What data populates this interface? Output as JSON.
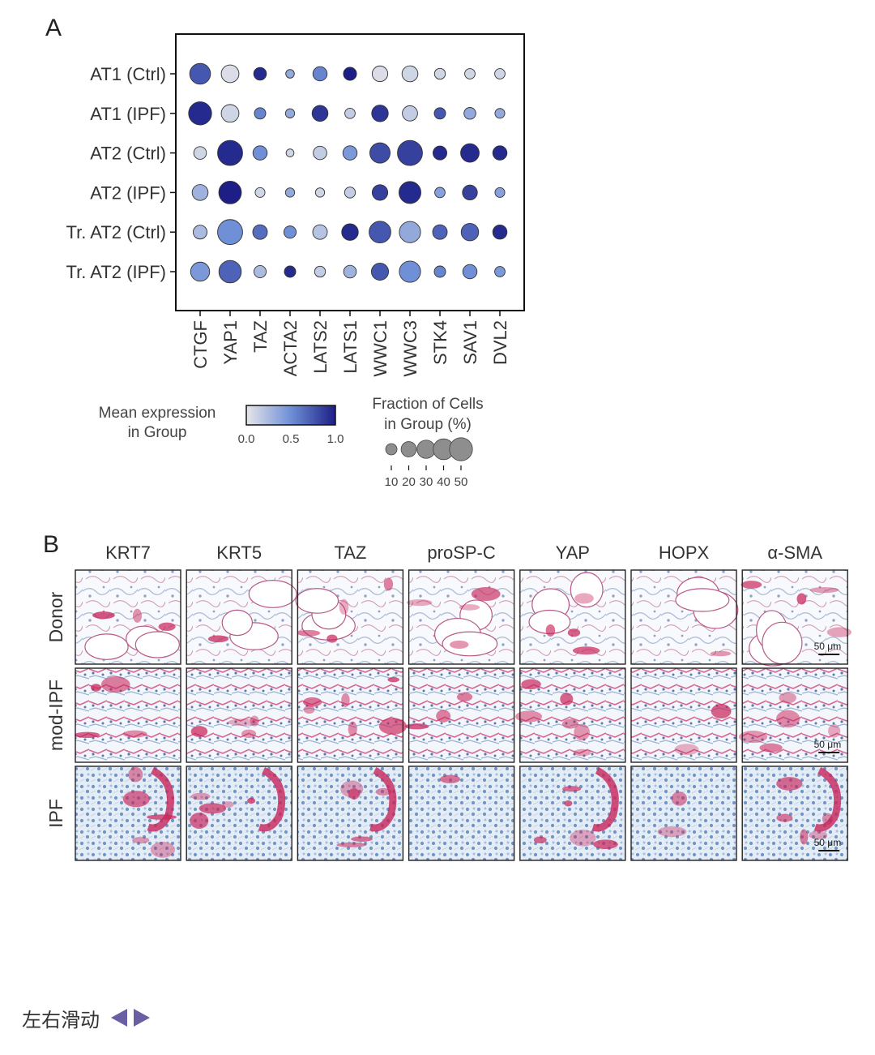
{
  "chart_data": {
    "type": "dotplot",
    "panel_label": "A",
    "rows": [
      "AT1 (Ctrl)",
      "AT1 (IPF)",
      "AT2 (Ctrl)",
      "AT2 (IPF)",
      "Tr. AT2 (Ctrl)",
      "Tr. AT2 (IPF)"
    ],
    "genes": [
      "CTGF",
      "YAP1",
      "TAZ",
      "ACTA2",
      "LATS2",
      "LATS1",
      "WWC1",
      "WWC3",
      "STK4",
      "SAV1",
      "DVL2"
    ],
    "mean_expression": [
      [
        0.75,
        0.05,
        0.95,
        0.35,
        0.55,
        1.0,
        0.05,
        0.1,
        0.1,
        0.1,
        0.1
      ],
      [
        0.95,
        0.1,
        0.55,
        0.35,
        0.9,
        0.15,
        0.9,
        0.15,
        0.75,
        0.35,
        0.35
      ],
      [
        0.1,
        0.95,
        0.5,
        0.1,
        0.15,
        0.45,
        0.8,
        0.85,
        0.95,
        0.95,
        0.95
      ],
      [
        0.3,
        1.0,
        0.1,
        0.35,
        0.1,
        0.15,
        0.85,
        0.95,
        0.4,
        0.85,
        0.4
      ],
      [
        0.25,
        0.5,
        0.65,
        0.5,
        0.2,
        0.95,
        0.75,
        0.35,
        0.7,
        0.7,
        0.95
      ],
      [
        0.45,
        0.7,
        0.25,
        0.95,
        0.15,
        0.3,
        0.75,
        0.5,
        0.55,
        0.5,
        0.45
      ]
    ],
    "fraction_pct": [
      [
        40,
        28,
        13,
        5,
        17,
        14,
        21,
        22,
        9,
        8,
        8
      ],
      [
        50,
        28,
        10,
        6,
        22,
        8,
        24,
        20,
        10,
        11,
        7
      ],
      [
        13,
        60,
        17,
        4,
        15,
        17,
        38,
        60,
        16,
        31,
        17
      ],
      [
        22,
        48,
        7,
        6,
        6,
        9,
        21,
        45,
        8,
        19,
        7
      ],
      [
        16,
        60,
        18,
        12,
        18,
        24,
        44,
        42,
        18,
        27,
        17
      ],
      [
        33,
        47,
        12,
        10,
        9,
        13,
        26,
        42,
        10,
        17,
        8
      ]
    ],
    "color_legend": {
      "title": "Mean expression\nin Group",
      "ticks": [
        "0.0",
        "0.5",
        "1.0"
      ],
      "range": [
        0,
        1
      ],
      "colors": [
        "#e6e6e9",
        "#6f8fd7",
        "#1d1f86"
      ]
    },
    "size_legend": {
      "title": "Fraction of Cells\nin Group (%)",
      "values": [
        10,
        20,
        30,
        40,
        50
      ]
    }
  },
  "panel_b": {
    "label": "B",
    "markers": [
      "KRT7",
      "KRT5",
      "TAZ",
      "proSP-C",
      "YAP",
      "HOPX",
      "α-SMA"
    ],
    "conditions": [
      "Donor",
      "mod-IPF",
      "IPF"
    ],
    "scale_bar": "50 μm"
  },
  "footer": {
    "text": "左右滑动"
  },
  "colors": {
    "stain_red": "#c8245a",
    "stain_blue": "#3f6fb0",
    "dot_edge": "#333333",
    "arrow": "#6a5fa3"
  }
}
